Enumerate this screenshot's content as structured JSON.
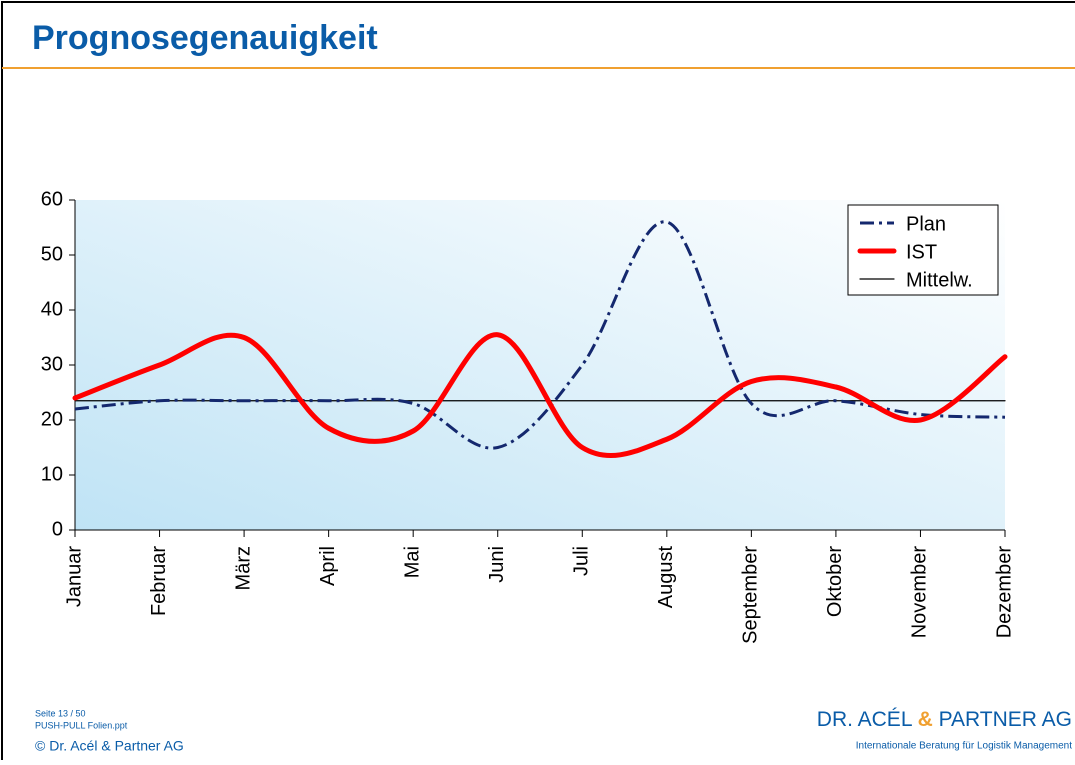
{
  "slide": {
    "title": "Prognosegenauigkeit",
    "page": "Seite  13 / 50",
    "file": "PUSH-PULL Folien.ppt",
    "copyright": "© Dr. Acél & Partner AG",
    "logo": {
      "name1": "DR. ACÉL ",
      "amp": "&",
      "name2": " PARTNER AG",
      "tagline": "Internationale Beratung für Logistik Management"
    }
  },
  "chart_data": {
    "type": "line",
    "categories": [
      "Januar",
      "Februar",
      "März",
      "April",
      "Mai",
      "Juni",
      "Juli",
      "August",
      "September",
      "Oktober",
      "November",
      "Dezember"
    ],
    "series": [
      {
        "name": "Plan",
        "color": "#14286e",
        "dash": "dashdot",
        "values": [
          22,
          23.5,
          23.5,
          23.5,
          23,
          15,
          30,
          56,
          23,
          23.5,
          21,
          20.5
        ]
      },
      {
        "name": "IST",
        "color": "#ff0000",
        "values": [
          24,
          30,
          35,
          18.5,
          18,
          35.5,
          15,
          16.5,
          27,
          26,
          20,
          31.5
        ]
      },
      {
        "name": "Mittelw.",
        "color": "#000000",
        "straight": true,
        "values": [
          23.5,
          23.5,
          23.5,
          23.5,
          23.5,
          23.5,
          23.5,
          23.5,
          23.5,
          23.5,
          23.5,
          23.5
        ]
      }
    ],
    "ylim": [
      0,
      60
    ],
    "yticks": [
      0,
      10,
      20,
      30,
      40,
      50,
      60
    ],
    "legend": "top-right",
    "smooth": true
  }
}
